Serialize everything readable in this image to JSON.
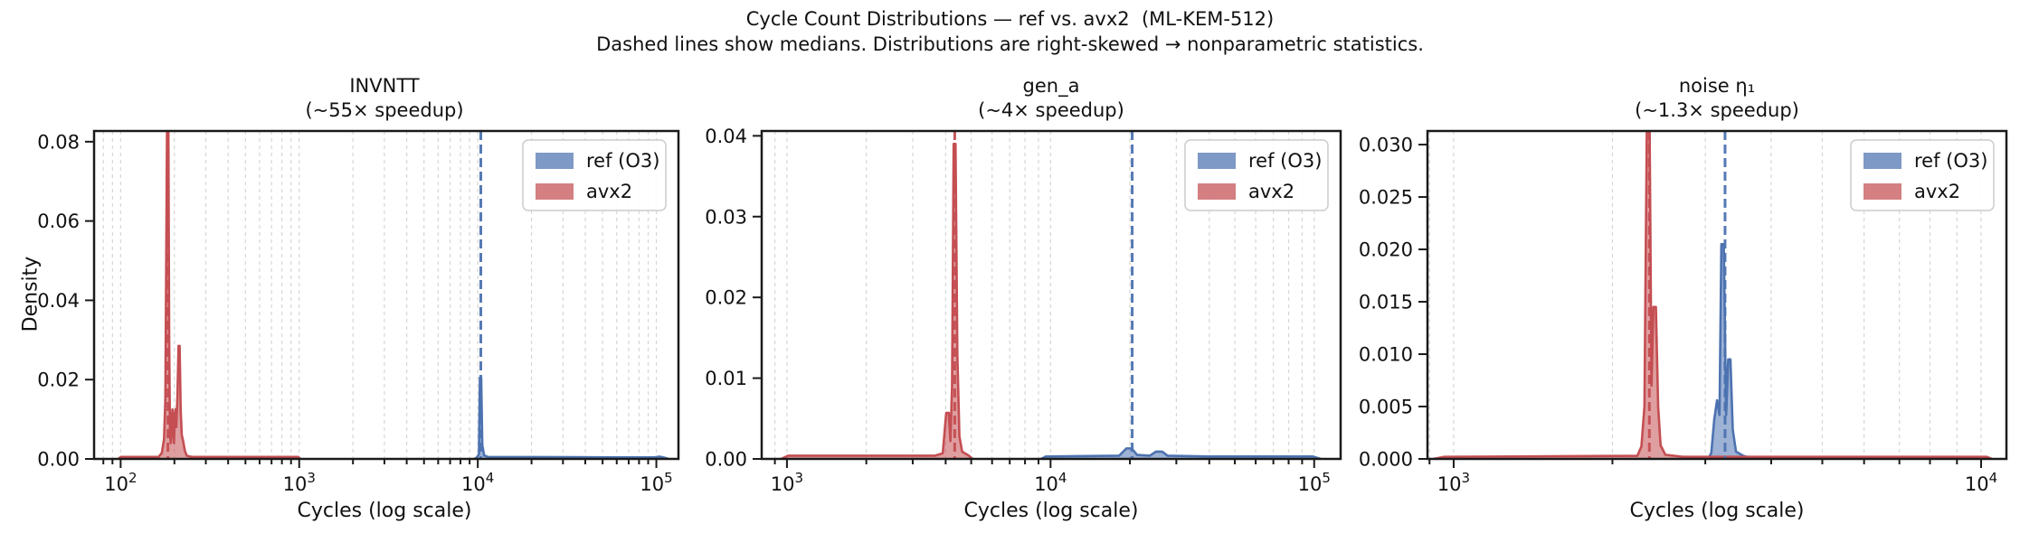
{
  "figure": {
    "title": "Cycle Count Distributions — ref vs. avx2  (ML-KEM-512)",
    "subtitle": "Dashed lines show medians. Distributions are right-skewed → nonparametric statistics.",
    "background": "#ffffff"
  },
  "colors": {
    "ref": "#4c72b0",
    "avx2": "#c44e52",
    "fill_opacity": 0.55,
    "legend_swatch_opacity": 0.72,
    "grid": "#d6d6d6",
    "spine": "#1a1a1a",
    "legend_edge": "#cccccc",
    "legend_face": "#ffffff"
  },
  "legend": {
    "position": "top-right",
    "entries": [
      {
        "key": "ref",
        "label": "ref (O3)"
      },
      {
        "key": "avx2",
        "label": "avx2"
      }
    ]
  },
  "chart_data": [
    {
      "type": "area",
      "id": "invntt",
      "title": "INVNTT",
      "subtitle": "(~55× speedup)",
      "xlabel": "Cycles (log scale)",
      "ylabel": "Density",
      "x_scale": "log",
      "grid": "dotted-vertical",
      "xlim": [
        71,
        133000
      ],
      "ylim": [
        0,
        0.0827
      ],
      "x_tick_exponents": [
        2,
        3,
        4,
        5
      ],
      "y_ticks": [
        0,
        0.02,
        0.04,
        0.06,
        0.08
      ],
      "y_tick_labels": [
        "0.00",
        "0.02",
        "0.04",
        "0.06",
        "0.08"
      ],
      "medians": {
        "ref": 10400,
        "avx2": 184
      },
      "series": [
        {
          "key": "ref",
          "name": "ref (O3)",
          "points": [
            [
              9600,
              0
            ],
            [
              9900,
              0.0004
            ],
            [
              10150,
              0.0012
            ],
            [
              10280,
              0.0205
            ],
            [
              10450,
              0.0205
            ],
            [
              10600,
              0.0035
            ],
            [
              10850,
              0.0009
            ],
            [
              11400,
              0.0005
            ],
            [
              60000,
              0.0004
            ],
            [
              98000,
              0.0004
            ],
            [
              104000,
              0.0006
            ],
            [
              111000,
              0.0003
            ],
            [
              117000,
              0
            ]
          ]
        },
        {
          "key": "avx2",
          "name": "avx2",
          "points": [
            [
              97,
              0
            ],
            [
              100,
              0.0005
            ],
            [
              163,
              0.0005
            ],
            [
              170,
              0.0015
            ],
            [
              175,
              0.005
            ],
            [
              178,
              0.015
            ],
            [
              180,
              0.05
            ],
            [
              182,
              0.086
            ],
            [
              185,
              0.086
            ],
            [
              187,
              0.03
            ],
            [
              189,
              0.006
            ],
            [
              191,
              0.004
            ],
            [
              193,
              0.009
            ],
            [
              195,
              0.0125
            ],
            [
              197,
              0.007
            ],
            [
              199,
              0.004
            ],
            [
              201,
              0.0115
            ],
            [
              203,
              0.0125
            ],
            [
              205,
              0.008
            ],
            [
              208,
              0.016
            ],
            [
              211,
              0.0285
            ],
            [
              214,
              0.0285
            ],
            [
              217,
              0.012
            ],
            [
              220,
              0.006
            ],
            [
              224,
              0.0045
            ],
            [
              229,
              0.002
            ],
            [
              235,
              0.0008
            ],
            [
              250,
              0.0005
            ],
            [
              990,
              0.0005
            ],
            [
              1012,
              0
            ]
          ]
        }
      ]
    },
    {
      "type": "area",
      "id": "gen-a",
      "title": "gen_a",
      "subtitle": "(~4× speedup)",
      "xlabel": "Cycles (log scale)",
      "ylabel": "",
      "x_scale": "log",
      "grid": "dotted-vertical",
      "xlim": [
        802,
        126000
      ],
      "ylim": [
        0,
        0.0406
      ],
      "x_tick_exponents": [
        3,
        4,
        5
      ],
      "y_ticks": [
        0,
        0.01,
        0.02,
        0.03,
        0.04
      ],
      "y_tick_labels": [
        "0.00",
        "0.01",
        "0.02",
        "0.03",
        "0.04"
      ],
      "medians": {
        "ref": 20400,
        "avx2": 4330
      },
      "series": [
        {
          "key": "ref",
          "name": "ref (O3)",
          "points": [
            [
              9200,
              0
            ],
            [
              9600,
              0.0003
            ],
            [
              18200,
              0.0004
            ],
            [
              19400,
              0.0013
            ],
            [
              20300,
              0.0013
            ],
            [
              21300,
              0.0005
            ],
            [
              23800,
              0.0004
            ],
            [
              25100,
              0.0009
            ],
            [
              26500,
              0.0009
            ],
            [
              27800,
              0.0004
            ],
            [
              40000,
              0.0003
            ],
            [
              99000,
              0.0003
            ],
            [
              106000,
              0
            ]
          ]
        },
        {
          "key": "avx2",
          "name": "avx2",
          "points": [
            [
              950,
              0
            ],
            [
              1010,
              0.0004
            ],
            [
              3650,
              0.0004
            ],
            [
              3900,
              0.0007
            ],
            [
              4020,
              0.0057
            ],
            [
              4110,
              0.0057
            ],
            [
              4170,
              0.0022
            ],
            [
              4230,
              0.009
            ],
            [
              4290,
              0.039
            ],
            [
              4360,
              0.039
            ],
            [
              4430,
              0.013
            ],
            [
              4510,
              0.0028
            ],
            [
              4620,
              0.0009
            ],
            [
              4900,
              0.0004
            ],
            [
              5060,
              0
            ]
          ]
        }
      ]
    },
    {
      "type": "area",
      "id": "noise-eta1",
      "title": "noise η₁",
      "subtitle": "(~1.3× speedup)",
      "xlabel": "Cycles (log scale)",
      "ylabel": "",
      "x_scale": "log",
      "grid": "dotted-vertical",
      "xlim": [
        892,
        11170
      ],
      "ylim": [
        0,
        0.0313
      ],
      "x_tick_exponents": [
        3,
        4
      ],
      "y_ticks": [
        0,
        0.005,
        0.01,
        0.015,
        0.02,
        0.025,
        0.03
      ],
      "y_tick_labels": [
        "0.000",
        "0.005",
        "0.010",
        "0.015",
        "0.020",
        "0.025",
        "0.030"
      ],
      "medians": {
        "ref": 3270,
        "avx2": 2350
      },
      "series": [
        {
          "key": "ref",
          "name": "ref (O3)",
          "points": [
            [
              3040,
              0
            ],
            [
              3080,
              0.0006
            ],
            [
              3120,
              0.0038
            ],
            [
              3158,
              0.0056
            ],
            [
              3192,
              0.0042
            ],
            [
              3218,
              0.0205
            ],
            [
              3252,
              0.0205
            ],
            [
              3286,
              0.0042
            ],
            [
              3316,
              0.0095
            ],
            [
              3348,
              0.0095
            ],
            [
              3382,
              0.0028
            ],
            [
              3430,
              0.0007
            ],
            [
              3540,
              0.0003
            ],
            [
              3700,
              0
            ]
          ]
        },
        {
          "key": "avx2",
          "name": "avx2",
          "points": [
            [
              915,
              0
            ],
            [
              960,
              0.0002
            ],
            [
              2230,
              0.0003
            ],
            [
              2270,
              0.0012
            ],
            [
              2300,
              0.005
            ],
            [
              2325,
              0.0325
            ],
            [
              2352,
              0.0325
            ],
            [
              2372,
              0.007
            ],
            [
              2392,
              0.0145
            ],
            [
              2418,
              0.0145
            ],
            [
              2442,
              0.005
            ],
            [
              2468,
              0.0013
            ],
            [
              2520,
              0.0004
            ],
            [
              2720,
              0.0002
            ],
            [
              10250,
              0.0002
            ],
            [
              10480,
              0
            ]
          ]
        }
      ]
    }
  ]
}
